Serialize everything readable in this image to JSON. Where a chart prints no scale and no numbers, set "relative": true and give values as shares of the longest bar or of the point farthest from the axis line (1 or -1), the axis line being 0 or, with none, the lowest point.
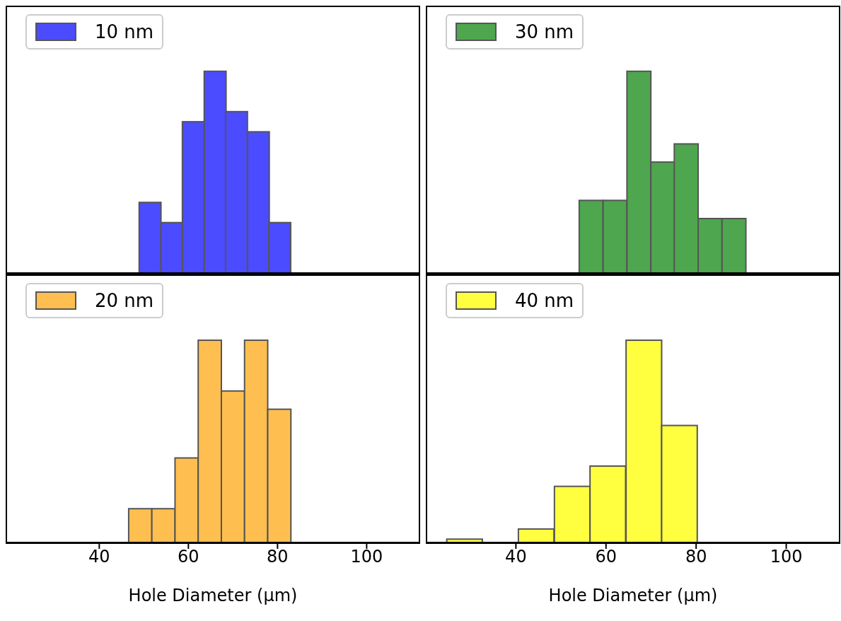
{
  "chart_data": [
    {
      "type": "bar",
      "relative": true,
      "x": [
        51.4,
        56.3,
        61.1,
        66.0,
        70.8,
        75.7,
        80.5
      ],
      "series": [
        {
          "name": "10 nm",
          "color": "#4b4bff",
          "values": [
            0.35,
            0.25,
            0.75,
            1,
            0.8,
            0.7,
            0.25
          ]
        }
      ],
      "xlim": [
        19,
        112
      ],
      "xticks": [
        40,
        60,
        80,
        100
      ],
      "tick_labels": false,
      "legend": "top left"
    },
    {
      "type": "bar",
      "relative": true,
      "x": [
        56.7,
        62.0,
        67.3,
        72.6,
        77.8,
        83.1,
        88.4
      ],
      "series": [
        {
          "name": "30 nm",
          "color": "#4ea64e",
          "values": [
            0.36,
            0.36,
            1,
            0.55,
            0.64,
            0.27,
            0.27
          ]
        }
      ],
      "xlim": [
        20,
        112
      ],
      "xticks": [
        40,
        60,
        80,
        100
      ],
      "tick_labels": false,
      "legend": "top left"
    },
    {
      "type": "bar",
      "relative": true,
      "x": [
        49.2,
        54.4,
        59.6,
        64.8,
        70.0,
        75.2,
        80.4
      ],
      "series": [
        {
          "name": "20 nm",
          "color": "#ffbf50",
          "values": [
            0.17,
            0.17,
            0.42,
            1,
            0.75,
            1,
            0.66
          ]
        }
      ],
      "xlim": [
        19,
        112
      ],
      "xticks": [
        40,
        60,
        80,
        100
      ],
      "xlabel": "Hole Diameter (µm)",
      "tick_labels": "x",
      "legend": "top left"
    },
    {
      "type": "bar",
      "relative": true,
      "x": [
        28.6,
        36.5,
        44.5,
        52.5,
        60.4,
        68.4,
        76.3
      ],
      "series": [
        {
          "name": "40 nm",
          "color": "#ffff40",
          "values": [
            0.02,
            0,
            0.07,
            0.28,
            0.38,
            1,
            0.58
          ]
        }
      ],
      "xlim": [
        20,
        112
      ],
      "xticks": [
        40,
        60,
        80,
        100
      ],
      "xlabel": "Hole Diameter (µm)",
      "tick_labels": "x",
      "legend": "top left"
    }
  ]
}
